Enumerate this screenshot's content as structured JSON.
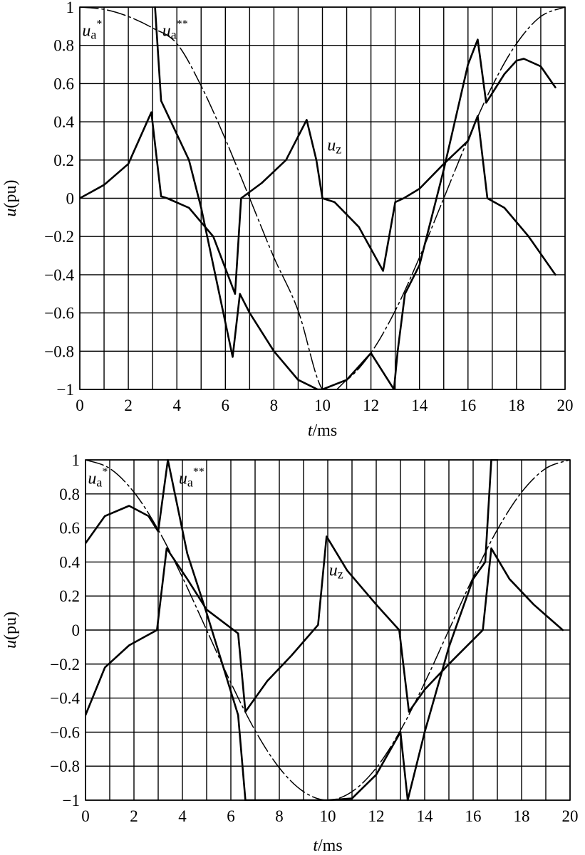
{
  "chart_data": [
    {
      "type": "line",
      "xlabel": "t/ms",
      "ylabel": "u(pu)",
      "xlim": [
        0,
        20
      ],
      "ylim": [
        -1,
        1
      ],
      "xticks": [
        "0",
        "2",
        "4",
        "6",
        "8",
        "10",
        "12",
        "14",
        "16",
        "18",
        "20"
      ],
      "yticks": [
        "1",
        "0.8",
        "0.6",
        "0.4",
        "0.2",
        "0",
        "−0.2",
        "−0.4",
        "−0.6",
        "−0.8",
        "−1"
      ],
      "grid": true,
      "series": [
        {
          "name": "u_a*",
          "label_main": "u",
          "label_sub": "a",
          "label_sup": "*",
          "label_at": [
            0.1,
            0.85
          ],
          "style": "thin, dash-dot near peaks",
          "x": [
            0,
            1,
            2,
            3,
            4,
            5,
            6,
            7,
            8,
            9,
            10,
            11,
            12,
            13,
            14,
            15,
            16,
            17,
            18,
            19,
            20
          ],
          "values": [
            1.0,
            0.988,
            0.951,
            0.891,
            0.809,
            0.588,
            0.309,
            0.0,
            -0.309,
            -0.588,
            -1.0,
            -0.951,
            -0.809,
            -0.588,
            -0.309,
            0.0,
            0.309,
            0.588,
            0.809,
            0.951,
            1.0
          ]
        },
        {
          "name": "u_a**",
          "label_main": "u",
          "label_sub": "a",
          "label_sup": "**",
          "label_at": [
            3.4,
            0.85
          ],
          "style": "thick",
          "x": [
            3.1,
            3.35,
            4.5,
            5.0,
            6.3,
            6.6,
            7.0,
            8.0,
            9.0,
            9.8,
            10.0,
            11.0,
            12.0,
            12.95,
            13.1,
            13.4,
            14.0,
            15.0,
            16.0,
            16.4,
            16.75,
            17.0,
            17.5,
            18.0,
            18.3,
            19.0,
            19.6
          ],
          "values": [
            1.0,
            0.51,
            0.2,
            -0.05,
            -0.83,
            -0.5,
            -0.6,
            -0.8,
            -0.95,
            -1.0,
            -1.0,
            -0.95,
            -0.81,
            -1.0,
            -0.8,
            -0.5,
            -0.35,
            0.15,
            0.7,
            0.83,
            0.5,
            0.55,
            0.65,
            0.72,
            0.73,
            0.69,
            0.58
          ]
        },
        {
          "name": "u_z",
          "label_main": "u",
          "label_sub": "z",
          "label_sup": "",
          "label_at": [
            10.2,
            0.25
          ],
          "style": "thick",
          "x": [
            0,
            1.0,
            2.0,
            2.95,
            3.35,
            3.6,
            4.5,
            5.5,
            6.4,
            6.65,
            7.5,
            8.5,
            9.35,
            9.75,
            10.0,
            10.5,
            11.5,
            12.5,
            13.0,
            13.35,
            14.0,
            15.0,
            16.0,
            16.4,
            16.8,
            17.5,
            18.5,
            19.6
          ],
          "values": [
            0.0,
            0.07,
            0.18,
            0.45,
            0.01,
            0.0,
            -0.05,
            -0.2,
            -0.5,
            0.0,
            0.08,
            0.2,
            0.41,
            0.2,
            0.0,
            -0.02,
            -0.15,
            -0.38,
            -0.02,
            0.0,
            0.05,
            0.18,
            0.3,
            0.43,
            0.0,
            -0.05,
            -0.2,
            -0.4
          ]
        }
      ]
    },
    {
      "type": "line",
      "xlabel": "t/ms",
      "ylabel": "u(pu)",
      "xlim": [
        0,
        20
      ],
      "ylim": [
        -1,
        1
      ],
      "xticks": [
        "0",
        "2",
        "4",
        "6",
        "8",
        "10",
        "12",
        "14",
        "16",
        "18",
        "20"
      ],
      "yticks": [
        "1",
        "0.8",
        "0.6",
        "0.4",
        "0.2",
        "0",
        "−0.2",
        "−0.4",
        "−0.6",
        "−0.8",
        "−1"
      ],
      "grid": true,
      "series": [
        {
          "name": "u_a*",
          "label_main": "u",
          "label_sub": "a",
          "label_sup": "*",
          "label_at": [
            0.1,
            0.86
          ],
          "style": "thin, dash-dot near peaks",
          "x": [
            0,
            1,
            2,
            3,
            4,
            5,
            6,
            7,
            8,
            9,
            10,
            11,
            12,
            13,
            14,
            15,
            16,
            17,
            18,
            19,
            20
          ],
          "values": [
            1.0,
            0.95,
            0.81,
            0.59,
            0.31,
            0.0,
            -0.31,
            -0.59,
            -0.81,
            -0.95,
            -1.0,
            -0.95,
            -0.81,
            -0.59,
            -0.31,
            0.0,
            0.31,
            0.59,
            0.81,
            0.95,
            1.0
          ]
        },
        {
          "name": "u_a**",
          "label_main": "u",
          "label_sub": "a",
          "label_sup": "**",
          "label_at": [
            3.85,
            0.86
          ],
          "style": "thick",
          "x": [
            0,
            0.8,
            1.8,
            2.6,
            3.0,
            3.4,
            4.2,
            5.0,
            6.3,
            6.6,
            8.0,
            9.7,
            10.0,
            11.0,
            12.0,
            13.0,
            13.3,
            14.0,
            15.0,
            16.0,
            16.5,
            16.75,
            17.0
          ],
          "values": [
            0.51,
            0.67,
            0.73,
            0.67,
            0.58,
            1.0,
            0.45,
            0.1,
            -0.5,
            -1.0,
            -1.0,
            -1.0,
            -1.0,
            -0.99,
            -0.85,
            -0.6,
            -1.0,
            -0.6,
            -0.1,
            0.3,
            0.4,
            1.0,
            1.0
          ]
        },
        {
          "name": "u_z",
          "label_main": "u",
          "label_sub": "z",
          "label_sup": "",
          "label_at": [
            10.05,
            0.32
          ],
          "style": "thick",
          "x": [
            0,
            0.8,
            1.8,
            2.95,
            3.35,
            4.2,
            5.0,
            6.3,
            6.6,
            7.5,
            8.5,
            9.6,
            9.95,
            10.8,
            12.0,
            12.95,
            13.35,
            14.0,
            15.0,
            16.4,
            16.75,
            17.5,
            18.5,
            19.7
          ],
          "values": [
            -0.5,
            -0.22,
            -0.09,
            0.0,
            0.48,
            0.3,
            0.12,
            -0.02,
            -0.48,
            -0.3,
            -0.15,
            0.03,
            0.55,
            0.35,
            0.15,
            0.0,
            -0.48,
            -0.35,
            -0.2,
            0.0,
            0.48,
            0.3,
            0.15,
            0.0
          ]
        }
      ]
    }
  ]
}
